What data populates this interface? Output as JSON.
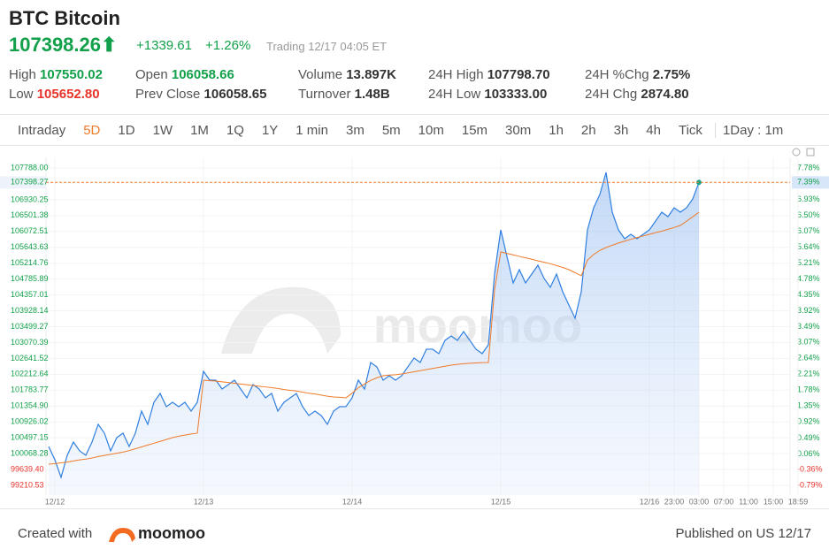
{
  "header": {
    "title": "BTC Bitcoin",
    "price": "107398.26",
    "change": "+1339.61",
    "change_pct": "+1.26%",
    "status": "Trading 12/17 04:05 ET"
  },
  "stats": [
    {
      "label": "High",
      "value": "107550.02",
      "color": "#12a04a"
    },
    {
      "label": "Low",
      "value": "105652.80",
      "color": "#e8332a"
    },
    {
      "label": "Open",
      "value": "106058.66",
      "color": "#12a04a"
    },
    {
      "label": "Prev Close",
      "value": "106058.65",
      "color": "#333333"
    },
    {
      "label": "Volume",
      "value": "13.897K",
      "color": "#333333"
    },
    {
      "label": "Turnover",
      "value": "1.48B",
      "color": "#333333"
    },
    {
      "label": "24H High",
      "value": "107798.70",
      "color": "#333333"
    },
    {
      "label": "24H Low",
      "value": "103333.00",
      "color": "#333333"
    },
    {
      "label": "24H %Chg",
      "value": "2.75%",
      "color": "#333333"
    },
    {
      "label": "24H Chg",
      "value": "2874.80",
      "color": "#333333"
    }
  ],
  "tabs": {
    "items": [
      "Intraday",
      "5D",
      "1D",
      "1W",
      "1M",
      "1Q",
      "1Y",
      "1 min",
      "3m",
      "5m",
      "10m",
      "15m",
      "30m",
      "1h",
      "2h",
      "3h",
      "4h",
      "Tick"
    ],
    "active": 1,
    "interval": "1Day : 1m"
  },
  "chart_data": {
    "type": "line",
    "watermark": "moomoo",
    "categories": [
      null,
      "12/12",
      null,
      null,
      null,
      null,
      null,
      null,
      null,
      null,
      null,
      null,
      null,
      null,
      null,
      null,
      null,
      null,
      null,
      null,
      null,
      null,
      null,
      null,
      null,
      "12/13",
      null,
      null,
      null,
      null,
      null,
      null,
      null,
      null,
      null,
      null,
      null,
      null,
      null,
      null,
      null,
      null,
      null,
      null,
      null,
      null,
      null,
      null,
      null,
      "12/14",
      null,
      null,
      null,
      null,
      null,
      null,
      null,
      null,
      null,
      null,
      null,
      null,
      null,
      null,
      null,
      null,
      null,
      null,
      null,
      null,
      null,
      null,
      null,
      "12/15",
      null,
      null,
      null,
      null,
      null,
      null,
      null,
      null,
      null,
      null,
      null,
      null,
      null,
      null,
      null,
      null,
      null,
      null,
      null,
      null,
      null,
      null,
      null,
      "12/16",
      null,
      null,
      null,
      "23:00",
      null,
      null,
      null,
      "03:00",
      null,
      null,
      null,
      "07:00",
      null,
      null,
      null,
      "11:00",
      null,
      null,
      null,
      "15:00",
      null,
      null,
      null,
      "18:59"
    ],
    "series": [
      {
        "name": "Price",
        "color": "#2f7fe0",
        "values": [
          100263,
          99904,
          99426,
          100024,
          100382,
          100143,
          100024,
          100382,
          100860,
          100621,
          100143,
          100501,
          100621,
          100263,
          100621,
          101218,
          100860,
          101457,
          101696,
          101338,
          101457,
          101338,
          101457,
          101218,
          101457,
          102293,
          102054,
          102054,
          101815,
          101935,
          102054,
          101815,
          101577,
          101935,
          101815,
          101577,
          101696,
          101218,
          101457,
          101577,
          101696,
          101338,
          101099,
          101218,
          101099,
          100860,
          101218,
          101338,
          101338,
          101577,
          102054,
          101815,
          102532,
          102413,
          102054,
          102174,
          102054,
          102174,
          102413,
          102652,
          102532,
          102891,
          102891,
          102771,
          103130,
          103249,
          103130,
          103368,
          103130,
          102891,
          102771,
          103010,
          104921,
          106116,
          105399,
          104682,
          105041,
          104682,
          104921,
          105160,
          104802,
          104563,
          104921,
          104443,
          104085,
          103727,
          104443,
          106116,
          106713,
          107072,
          107669,
          106594,
          106116,
          105877,
          105996,
          105877,
          105996,
          106116,
          106355,
          106594,
          106474,
          106713,
          106594,
          106713,
          106952,
          107398.26,
          null,
          null,
          null,
          null,
          null,
          null,
          null,
          null,
          null,
          null,
          null,
          null,
          null,
          null,
          null,
          null
        ]
      },
      {
        "name": "Average",
        "color": "#f07a2a",
        "values": [
          99785,
          99800,
          99820,
          99840,
          99870,
          99900,
          99920,
          99950,
          99990,
          100020,
          100050,
          100080,
          100110,
          100150,
          100200,
          100250,
          100300,
          100350,
          100400,
          100450,
          100500,
          100540,
          100570,
          100600,
          100621,
          102054,
          102040,
          102030,
          102010,
          101990,
          101970,
          101950,
          101930,
          101910,
          101890,
          101870,
          101850,
          101830,
          101800,
          101780,
          101760,
          101730,
          101700,
          101680,
          101650,
          101620,
          101600,
          101590,
          101577,
          101700,
          101850,
          101950,
          102050,
          102120,
          102174,
          102190,
          102200,
          102220,
          102250,
          102280,
          102310,
          102340,
          102370,
          102400,
          102430,
          102460,
          102480,
          102500,
          102510,
          102520,
          102530,
          102532,
          104500,
          105518,
          105480,
          105440,
          105400,
          105360,
          105320,
          105280,
          105240,
          105200,
          105150,
          105100,
          105040,
          104960,
          104874,
          105300,
          105450,
          105560,
          105638,
          105700,
          105760,
          105810,
          105860,
          105910,
          105950,
          105996,
          106040,
          106080,
          106130,
          106180,
          106235,
          106350,
          106470,
          106594,
          null,
          null,
          null,
          null,
          null,
          null,
          null,
          null,
          null,
          null,
          null,
          null,
          null,
          null,
          null,
          null
        ]
      }
    ],
    "ylim": [
      99210.53,
      107788
    ],
    "yticks": [
      {
        "value": 107788,
        "label": "107788.00"
      },
      106930.25,
      106501.38,
      106072.51,
      105643.63,
      105214.76,
      104785.89,
      104357.01,
      103928.14,
      103499.27,
      103070.39,
      102641.52,
      102212.64,
      101783.77,
      {
        "value": 101354.9,
        "label": "101354.90"
      },
      100926.02,
      100497.15,
      100068.28,
      {
        "value": 99639.4,
        "label": "99639.40"
      },
      99210.53
    ],
    "y2lim": [
      -0.79,
      7.78
    ],
    "y2ticks": [
      {
        "value": 7.78,
        "label": "7.78%"
      },
      {
        "value": 6.93,
        "label": "6.93%"
      },
      {
        "value": 6.5,
        "label": "6.50%"
      },
      {
        "value": 6.07,
        "label": "6.07%"
      },
      {
        "value": 5.64,
        "label": "5.64%"
      },
      {
        "value": 5.21,
        "label": "5.21%"
      },
      {
        "value": 4.78,
        "label": "4.78%"
      },
      {
        "value": 4.35,
        "label": "4.35%"
      },
      {
        "value": 3.92,
        "label": "3.92%"
      },
      {
        "value": 3.49,
        "label": "3.49%"
      },
      {
        "value": 3.07,
        "label": "3.07%"
      },
      {
        "value": 2.64,
        "label": "2.64%"
      },
      {
        "value": 2.21,
        "label": "2.21%"
      },
      {
        "value": 1.78,
        "label": "1.78%"
      },
      {
        "value": 1.35,
        "label": "1.35%"
      },
      {
        "value": 0.92,
        "label": "0.92%"
      },
      {
        "value": 0.49,
        "label": "0.49%"
      },
      {
        "value": 0.06,
        "label": "0.06%"
      },
      {
        "value": -0.36,
        "label": "-0.36%"
      },
      {
        "value": -0.79,
        "label": "-0.79%"
      }
    ],
    "up_color": "#12a04a",
    "down_color": "#e8332a",
    "last_line": {
      "value": 107398.27,
      "label": "107398.27",
      "pct": {
        "value": 7.39,
        "label": "7.39%"
      }
    },
    "grid": true
  },
  "footer": {
    "created": "Created with",
    "brand": "moomoo",
    "published": "Published on US 12/17"
  }
}
